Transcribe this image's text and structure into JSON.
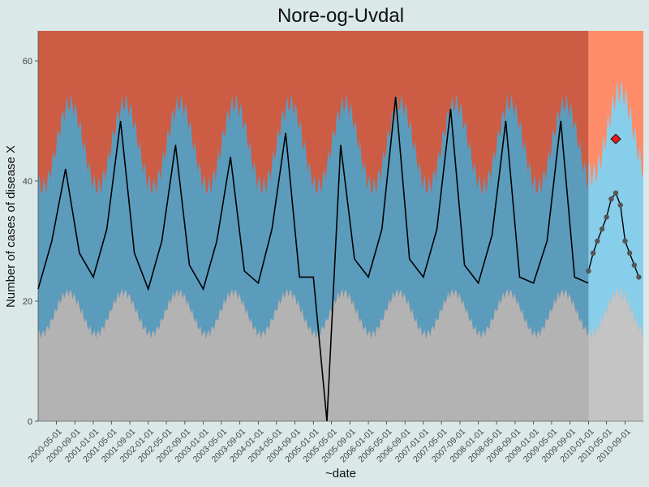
{
  "chart_data": {
    "type": "area",
    "title": "Nore-og-Uvdal",
    "xlabel": "~date",
    "ylabel": "Number of cases of disease X",
    "xlim": [
      "2000-01-01",
      "2010-12-31"
    ],
    "ylim": [
      0,
      65
    ],
    "yticks": [
      0,
      20,
      40,
      60
    ],
    "xticks": [
      "2000-05-01",
      "2000-09-01",
      "2001-01-01",
      "2001-05-01",
      "2001-09-01",
      "2002-01-01",
      "2002-05-01",
      "2002-09-01",
      "2003-01-01",
      "2003-05-01",
      "2003-09-01",
      "2004-01-01",
      "2004-05-01",
      "2004-09-01",
      "2005-01-01",
      "2005-05-01",
      "2005-09-01",
      "2006-01-01",
      "2006-05-01",
      "2006-09-01",
      "2007-01-01",
      "2007-05-01",
      "2007-09-01",
      "2008-01-01",
      "2008-05-01",
      "2008-09-01",
      "2009-01-01",
      "2009-05-01",
      "2009-09-01",
      "2010-01-01",
      "2010-05-01",
      "2010-09-01"
    ],
    "forecast_start": "2010-01-01",
    "grid": false,
    "legend": "none",
    "bands": {
      "low_color": "#b3b3b3",
      "normal_color": "#5b9cbd",
      "high_color": "#cd5c45",
      "forecast_low_color": "#c4c4c4",
      "forecast_normal_color": "#87ceeb",
      "forecast_high_color": "#ff8c69"
    },
    "line_color": "#000000",
    "forecast_point_color": "#555555",
    "alert_color": "#e41a1c",
    "series": [
      {
        "name": "",
        "x": [
          "2000-01-01",
          "2000-04-01",
          "2000-07-01",
          "2000-10-01",
          "2001-01-01",
          "2001-04-01",
          "2001-07-01",
          "2001-10-01",
          "2002-01-01",
          "2002-04-01",
          "2002-07-01",
          "2002-10-01",
          "2003-01-01",
          "2003-04-01",
          "2003-07-01",
          "2003-10-01",
          "2004-01-01",
          "2004-04-01",
          "2004-07-01",
          "2004-10-01",
          "2005-01-01",
          "2005-04-01",
          "2005-07-01",
          "2005-10-01",
          "2006-01-01",
          "2006-04-01",
          "2006-07-01",
          "2006-10-01",
          "2007-01-01",
          "2007-04-01",
          "2007-07-01",
          "2007-10-01",
          "2008-01-01",
          "2008-04-01",
          "2008-07-01",
          "2008-10-01",
          "2009-01-01",
          "2009-04-01",
          "2009-07-01",
          "2009-10-01",
          "2009-12-31"
        ],
        "y": [
          22,
          30,
          42,
          28,
          24,
          32,
          50,
          28,
          22,
          30,
          46,
          26,
          22,
          30,
          44,
          25,
          23,
          32,
          48,
          24,
          24,
          0,
          46,
          27,
          24,
          32,
          54,
          27,
          24,
          32,
          52,
          26,
          23,
          31,
          50,
          24,
          23,
          30,
          50,
          24,
          23
        ]
      },
      {
        "name": "",
        "x": [
          "2010-01-01",
          "2010-02-01",
          "2010-03-01",
          "2010-04-01",
          "2010-05-01",
          "2010-06-01",
          "2010-07-01",
          "2010-08-01",
          "2010-09-01",
          "2010-10-01",
          "2010-11-01",
          "2010-12-01"
        ],
        "y": [
          25,
          28,
          30,
          32,
          34,
          37,
          38,
          36,
          30,
          28,
          26,
          24
        ]
      }
    ],
    "alert": {
      "x": "2010-07-01",
      "y": 47
    }
  }
}
